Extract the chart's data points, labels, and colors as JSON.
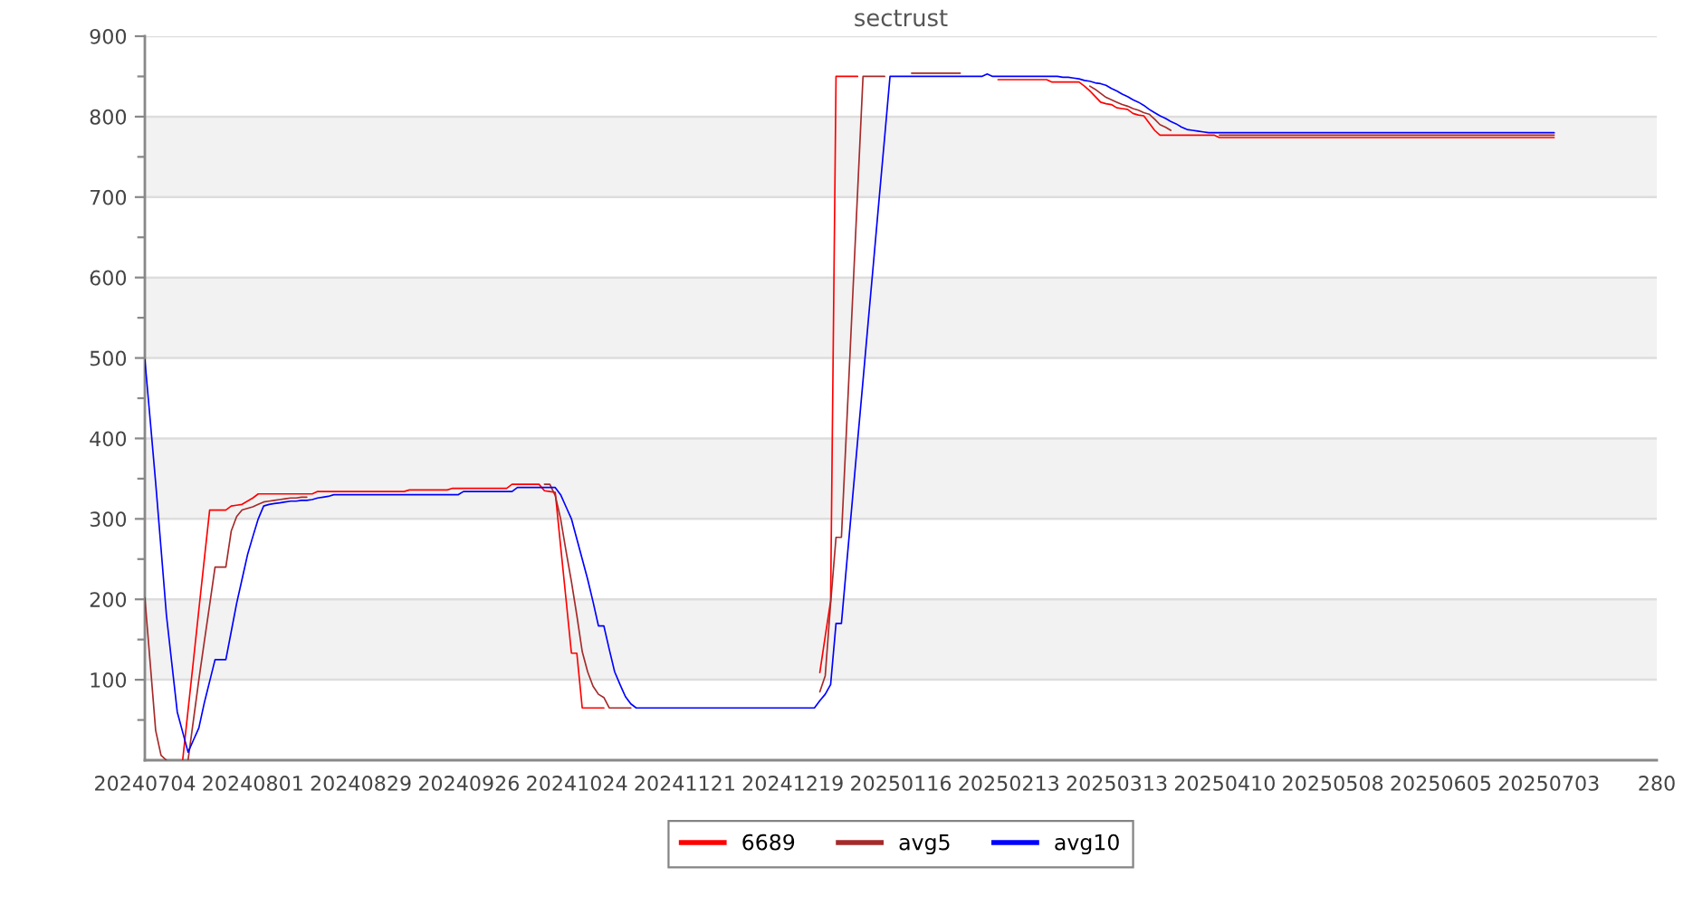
{
  "chart_data": {
    "type": "line",
    "title": "sectrust",
    "categories": [
      "20240704",
      null,
      null,
      null,
      null,
      null,
      null,
      null,
      null,
      null,
      null,
      null,
      null,
      null,
      null,
      null,
      null,
      null,
      null,
      null,
      "20240801",
      null,
      null,
      null,
      null,
      null,
      null,
      null,
      null,
      null,
      null,
      null,
      null,
      null,
      null,
      null,
      null,
      null,
      null,
      null,
      "20240829",
      null,
      null,
      null,
      null,
      null,
      null,
      null,
      null,
      null,
      null,
      null,
      null,
      null,
      null,
      null,
      null,
      null,
      null,
      null,
      "20240926",
      null,
      null,
      null,
      null,
      null,
      null,
      null,
      null,
      null,
      null,
      null,
      null,
      null,
      null,
      null,
      null,
      null,
      null,
      null,
      "20241024",
      null,
      null,
      null,
      null,
      null,
      null,
      null,
      null,
      null,
      null,
      null,
      null,
      null,
      null,
      null,
      null,
      null,
      null,
      null,
      "20241121",
      null,
      null,
      null,
      null,
      null,
      null,
      null,
      null,
      null,
      null,
      null,
      null,
      null,
      null,
      null,
      null,
      null,
      null,
      null,
      "20241219",
      null,
      null,
      null,
      null,
      null,
      null,
      null,
      null,
      null,
      null,
      null,
      null,
      null,
      null,
      null,
      null,
      null,
      null,
      null,
      "20250116",
      null,
      null,
      null,
      null,
      null,
      null,
      null,
      null,
      null,
      null,
      null,
      null,
      null,
      null,
      null,
      null,
      null,
      null,
      null,
      "20250213",
      null,
      null,
      null,
      null,
      null,
      null,
      null,
      null,
      null,
      null,
      null,
      null,
      null,
      null,
      null,
      null,
      null,
      null,
      null,
      "20250313",
      null,
      null,
      null,
      null,
      null,
      null,
      null,
      null,
      null,
      null,
      null,
      null,
      null,
      null,
      null,
      null,
      null,
      null,
      null,
      "20250410",
      null,
      null,
      null,
      null,
      null,
      null,
      null,
      null,
      null,
      null,
      null,
      null,
      null,
      null,
      null,
      null,
      null,
      null,
      null,
      "20250508",
      null,
      null,
      null,
      null,
      null,
      null,
      null,
      null,
      null,
      null,
      null,
      null,
      null,
      null,
      null,
      null,
      null,
      null,
      null,
      "20250605",
      null,
      null,
      null,
      null,
      null,
      null,
      null,
      null,
      null,
      null,
      null,
      null,
      null,
      null,
      null,
      null,
      null,
      null,
      null,
      "20250703",
      null,
      null,
      null,
      null,
      null,
      null,
      null,
      null,
      null,
      null,
      null,
      null,
      null,
      null,
      null,
      null,
      null,
      null,
      null,
      "280"
    ],
    "ylim": [
      0,
      900
    ],
    "yticks": [
      100,
      200,
      300,
      400,
      500,
      600,
      700,
      800,
      900,
      {
        "value": 50,
        "label": null
      },
      {
        "value": 150,
        "label": null
      },
      {
        "value": 250,
        "label": null
      },
      {
        "value": 350,
        "label": null
      },
      {
        "value": 450,
        "label": null
      },
      {
        "value": 550,
        "label": null
      },
      {
        "value": 650,
        "label": null
      },
      {
        "value": 750,
        "label": null
      },
      {
        "value": 850,
        "label": null
      }
    ],
    "grid": "y",
    "legend": "bottom",
    "bands": [
      {
        "axis": "y",
        "from": 100,
        "to": 200,
        "color": "#f2f2f2"
      },
      {
        "axis": "y",
        "from": 300,
        "to": 400,
        "color": "#f2f2f2"
      },
      {
        "axis": "y",
        "from": 500,
        "to": 600,
        "color": "#f2f2f2"
      },
      {
        "axis": "y",
        "from": 700,
        "to": 800,
        "color": "#f2f2f2"
      }
    ],
    "series": [
      {
        "name": "6689",
        "color": "#ff0000",
        "values": [
          null,
          null,
          null,
          null,
          null,
          null,
          null,
          0,
          62,
          124,
          187,
          249,
          311,
          311,
          311,
          311,
          316,
          317,
          318,
          322,
          326,
          331,
          331,
          331,
          331,
          331,
          331,
          331,
          331,
          331,
          331,
          331,
          334,
          334,
          334,
          334,
          334,
          334,
          334,
          334,
          334,
          334,
          334,
          334,
          334,
          334,
          334,
          334,
          334,
          336,
          336,
          336,
          336,
          336,
          336,
          336,
          336,
          338,
          338,
          338,
          338,
          338,
          338,
          338,
          338,
          338,
          338,
          338,
          343,
          343,
          343,
          343,
          343,
          343,
          335,
          334,
          333,
          266,
          200,
          133,
          133,
          65,
          65,
          65,
          65,
          65,
          null,
          null,
          null,
          null,
          null,
          null,
          null,
          null,
          null,
          null,
          null,
          null,
          null,
          null,
          null,
          null,
          null,
          null,
          null,
          null,
          null,
          null,
          null,
          null,
          null,
          null,
          null,
          null,
          null,
          null,
          null,
          null,
          null,
          null,
          null,
          null,
          null,
          null,
          null,
          109,
          154,
          198,
          850,
          850,
          850,
          850,
          850,
          null,
          null,
          null,
          null,
          null,
          null,
          null,
          null,
          null,
          null,
          null,
          null,
          null,
          null,
          null,
          null,
          null,
          null,
          null,
          null,
          null,
          null,
          null,
          null,
          null,
          846,
          846,
          846,
          846,
          846,
          846,
          846,
          846,
          846,
          846,
          843,
          843,
          843,
          843,
          843,
          843,
          838,
          832,
          825,
          818,
          816,
          815,
          811,
          810,
          809,
          804,
          802,
          801,
          792,
          783,
          777,
          777,
          777,
          777,
          777,
          777,
          777,
          777,
          777,
          777,
          777,
          774,
          774,
          774,
          774,
          774,
          774,
          774,
          774,
          774,
          774,
          774,
          774,
          774,
          774,
          774,
          774,
          774,
          774,
          774,
          774,
          774,
          774,
          774,
          774,
          774,
          774,
          774,
          774,
          774,
          774,
          774,
          774,
          774,
          774,
          774,
          774,
          774,
          774,
          774,
          774,
          774,
          774,
          774,
          774,
          774,
          774,
          774,
          774,
          774,
          774,
          774,
          774,
          774,
          774,
          774,
          774,
          774,
          774,
          774,
          774,
          774,
          774,
          774,
          null,
          null,
          null,
          null,
          null,
          null,
          null,
          null,
          null,
          null,
          null,
          null,
          null,
          null,
          null,
          null,
          null,
          null,
          null
        ]
      },
      {
        "name": "avg5",
        "color": "#a52a2a",
        "values": [
          202,
          120,
          37,
          6,
          0,
          null,
          null,
          null,
          0,
          50,
          100,
          147,
          193,
          240,
          240,
          240,
          285,
          303,
          311,
          313,
          315,
          318,
          321,
          322,
          323,
          324,
          325,
          326,
          326,
          327,
          327,
          null,
          null,
          null,
          null,
          null,
          null,
          null,
          null,
          null,
          null,
          null,
          null,
          null,
          null,
          null,
          null,
          null,
          null,
          null,
          null,
          null,
          null,
          null,
          null,
          null,
          null,
          null,
          null,
          null,
          null,
          null,
          null,
          null,
          null,
          null,
          null,
          null,
          null,
          null,
          null,
          null,
          null,
          null,
          343,
          343,
          329,
          300,
          260,
          222,
          180,
          135,
          110,
          92,
          82,
          78,
          65,
          65,
          65,
          65,
          65,
          null,
          null,
          null,
          null,
          null,
          null,
          null,
          null,
          null,
          null,
          null,
          null,
          null,
          null,
          null,
          null,
          null,
          null,
          null,
          null,
          null,
          null,
          null,
          null,
          null,
          null,
          null,
          null,
          null,
          null,
          null,
          null,
          null,
          null,
          85,
          105,
          195,
          277,
          277,
          420,
          564,
          707,
          850,
          850,
          850,
          850,
          850,
          null,
          null,
          null,
          null,
          854,
          854,
          854,
          854,
          854,
          854,
          854,
          854,
          854,
          854,
          null,
          null,
          null,
          null,
          null,
          null,
          null,
          null,
          null,
          null,
          null,
          null,
          null,
          null,
          null,
          null,
          null,
          null,
          null,
          null,
          null,
          null,
          null,
          838,
          834,
          829,
          824,
          821,
          818,
          815,
          813,
          810,
          808,
          805,
          803,
          797,
          790,
          787,
          783,
          null,
          null,
          null,
          null,
          null,
          null,
          null,
          null,
          777,
          777,
          777,
          777,
          777,
          777,
          777,
          777,
          777,
          777,
          777,
          777,
          777,
          777,
          777,
          777,
          777,
          777,
          777,
          777,
          777,
          777,
          777,
          777,
          777,
          777,
          777,
          777,
          777,
          777,
          777,
          777,
          777,
          777,
          777,
          777,
          777,
          777,
          777,
          777,
          777,
          777,
          777,
          777,
          777,
          777,
          777,
          777,
          777,
          777,
          777,
          777,
          777,
          777,
          777,
          777,
          777,
          777,
          777,
          777,
          777,
          777,
          777,
          null,
          null,
          null,
          null,
          null,
          null,
          null,
          null,
          null,
          null,
          null,
          null,
          null,
          null,
          null,
          null,
          null,
          null,
          null
        ]
      },
      {
        "name": "avg10",
        "color": "#0000ff",
        "values": [
          498,
          422,
          345,
          263,
          180,
          120,
          60,
          35,
          10,
          25,
          40,
          71,
          98,
          125,
          125,
          125,
          160,
          195,
          225,
          255,
          278,
          300,
          316,
          318,
          319,
          320,
          321,
          322,
          322,
          323,
          323,
          324,
          326,
          327,
          328,
          330,
          330,
          330,
          330,
          330,
          330,
          330,
          330,
          330,
          330,
          330,
          330,
          330,
          330,
          330,
          330,
          330,
          330,
          330,
          330,
          330,
          330,
          330,
          330,
          334,
          334,
          334,
          334,
          334,
          334,
          334,
          334,
          334,
          334,
          339,
          339,
          339,
          339,
          339,
          339,
          339,
          339,
          330,
          315,
          300,
          275,
          250,
          225,
          197,
          167,
          167,
          138,
          110,
          94,
          79,
          70,
          65,
          65,
          65,
          65,
          65,
          65,
          65,
          65,
          65,
          65,
          65,
          65,
          65,
          65,
          65,
          65,
          65,
          65,
          65,
          65,
          65,
          65,
          65,
          65,
          65,
          65,
          65,
          65,
          65,
          65,
          65,
          65,
          65,
          65,
          74,
          82,
          94,
          170,
          170,
          246,
          321,
          397,
          472,
          548,
          623,
          699,
          774,
          850,
          850,
          850,
          850,
          850,
          850,
          850,
          850,
          850,
          850,
          850,
          850,
          850,
          850,
          850,
          850,
          850,
          850,
          853,
          850,
          850,
          850,
          850,
          850,
          850,
          850,
          850,
          850,
          850,
          850,
          850,
          850,
          849,
          849,
          848,
          847,
          845,
          844,
          842,
          841,
          839,
          835,
          832,
          828,
          825,
          821,
          818,
          814,
          809,
          805,
          801,
          798,
          794,
          791,
          787,
          784,
          783,
          782,
          781,
          780,
          780,
          780,
          780,
          780,
          780,
          780,
          780,
          780,
          780,
          780,
          780,
          780,
          780,
          780,
          780,
          780,
          780,
          780,
          780,
          780,
          780,
          780,
          780,
          780,
          780,
          780,
          780,
          780,
          780,
          780,
          780,
          780,
          780,
          780,
          780,
          780,
          780,
          780,
          780,
          780,
          780,
          780,
          780,
          780,
          780,
          780,
          780,
          780,
          780,
          780,
          780,
          780,
          780,
          780,
          780,
          780,
          780,
          780,
          780,
          780,
          780,
          780,
          780,
          780,
          null,
          null,
          null,
          null,
          null,
          null,
          null,
          null,
          null,
          null,
          null,
          null,
          null,
          null,
          null,
          null,
          null,
          null,
          null
        ]
      }
    ]
  }
}
